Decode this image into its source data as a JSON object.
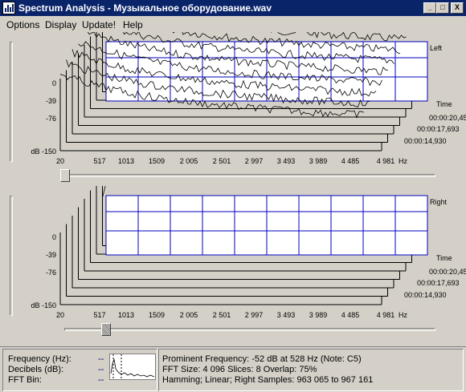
{
  "window": {
    "title": "Spectrum Analysis - Музыкальное оборудование.wav",
    "buttons": {
      "minimize": "_",
      "maximize": "□",
      "close": "X"
    }
  },
  "menu": {
    "items": [
      "Options",
      "Display",
      "Update!",
      "Help"
    ]
  },
  "panels": {
    "left": {
      "channel_label": "Left",
      "time_label": "Time",
      "times": [
        "00:00:20,45",
        "00:00:17,693",
        "00:00:14,930"
      ]
    },
    "right": {
      "channel_label": "Right",
      "time_label": "Time",
      "times": [
        "00:00:20,45",
        "00:00:17,693",
        "00:00:14,930"
      ]
    }
  },
  "axis": {
    "y_ticks": [
      "0",
      "-39",
      "-76",
      "dB -150"
    ],
    "x_ticks": [
      "20",
      "517",
      "1013",
      "1509",
      "2 005",
      "2 501",
      "2 997",
      "3 493",
      "3 989",
      "4 485",
      "4 981"
    ],
    "x_unit": "Hz"
  },
  "controls": {
    "left_slider_position": 0.0,
    "right_slider_position": 0.11
  },
  "status": {
    "labels": [
      "Frequency (Hz):",
      "Decibels (dB):",
      "FFT Bin:"
    ],
    "values": [
      "--",
      "--",
      "--"
    ],
    "info_lines": [
      "Prominent Frequency: -52 dB at 528 Hz (Note: C5)",
      "FFT Size: 4 096  Slices: 8  Overlap: 75%",
      "Hamming; Linear; Right  Samples: 963 065 to 967 161"
    ]
  },
  "colors": {
    "titlebar": "#0a246a",
    "grid": "#0000c0",
    "face": "#d4d0c8"
  }
}
